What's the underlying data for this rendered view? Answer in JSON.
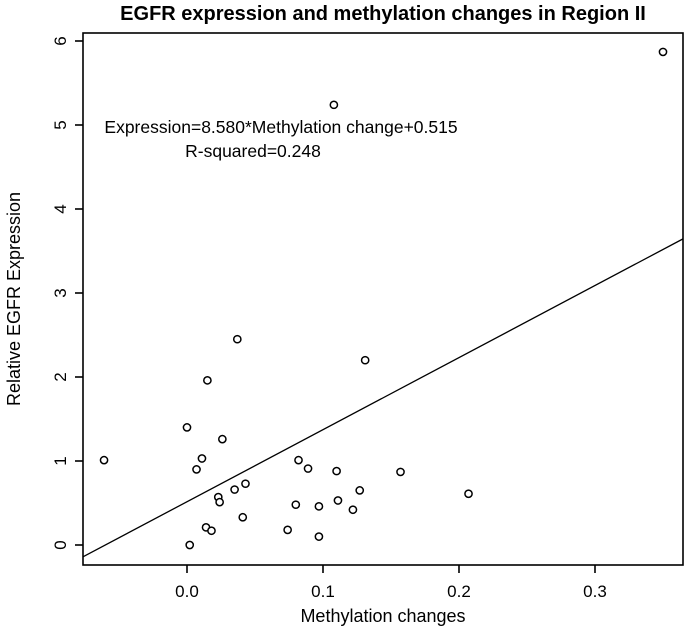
{
  "chart_data": {
    "type": "scatter",
    "title": "EGFR expression and methylation changes in Region II",
    "xlabel": "Methylation changes",
    "ylabel": "Relative EGFR Expression",
    "annotation_line1": "Expression=8.580*Methylation change+0.515",
    "annotation_line2": "R-squared=0.248",
    "x_ticks": [
      0.0,
      0.1,
      0.2,
      0.3
    ],
    "x_tick_labels": [
      "0.0",
      "0.1",
      "0.2",
      "0.3"
    ],
    "y_ticks": [
      0,
      1,
      2,
      3,
      4,
      5,
      6
    ],
    "y_tick_labels": [
      "0",
      "1",
      "2",
      "3",
      "4",
      "5",
      "6"
    ],
    "xlim": [
      -0.07647,
      0.36471
    ],
    "ylim": [
      -0.2381,
      6.0952
    ],
    "grid": false,
    "legend": "none",
    "marker": "open-circle",
    "regression": {
      "slope": 8.58,
      "intercept": 0.515,
      "r_squared": 0.248
    },
    "points": [
      [
        -0.061,
        1.01
      ],
      [
        0.0,
        1.4
      ],
      [
        0.002,
        0.0
      ],
      [
        0.007,
        0.9
      ],
      [
        0.011,
        1.03
      ],
      [
        0.014,
        0.21
      ],
      [
        0.015,
        1.96
      ],
      [
        0.018,
        0.17
      ],
      [
        0.023,
        0.57
      ],
      [
        0.024,
        0.51
      ],
      [
        0.026,
        1.26
      ],
      [
        0.035,
        0.66
      ],
      [
        0.037,
        2.45
      ],
      [
        0.041,
        0.33
      ],
      [
        0.043,
        0.73
      ],
      [
        0.074,
        0.18
      ],
      [
        0.08,
        0.48
      ],
      [
        0.082,
        1.01
      ],
      [
        0.089,
        0.91
      ],
      [
        0.097,
        0.46
      ],
      [
        0.097,
        0.1
      ],
      [
        0.108,
        5.24
      ],
      [
        0.11,
        0.88
      ],
      [
        0.111,
        0.53
      ],
      [
        0.122,
        0.42
      ],
      [
        0.127,
        0.65
      ],
      [
        0.131,
        2.2
      ],
      [
        0.157,
        0.87
      ],
      [
        0.207,
        0.61
      ],
      [
        0.35,
        5.87
      ]
    ],
    "colors": {
      "foreground": "#000000",
      "background": "#ffffff"
    }
  }
}
